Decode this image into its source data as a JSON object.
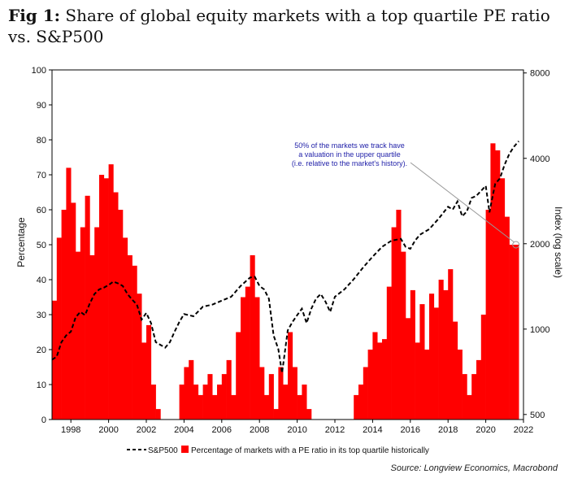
{
  "header": {
    "fig_label": "Fig 1:",
    "title_text": "Share of global equity markets with a top quartile PE ratio vs. S&P500"
  },
  "source": "Source: Longview Economics, Macrobond",
  "colors": {
    "bars": "#ff0000",
    "line": "#000000",
    "annotation": "#1f1fa8"
  },
  "chart_data": {
    "type": "bar",
    "combo": "bar + dashed line (secondary log axis)",
    "xlabel": "",
    "ylabel": "Percentage",
    "y2label": "Index (log scale)",
    "x_range": [
      1997,
      2022
    ],
    "x_ticks": [
      "1998",
      "2000",
      "2002",
      "2004",
      "2006",
      "2008",
      "2010",
      "2012",
      "2014",
      "2016",
      "2018",
      "2020",
      "2022"
    ],
    "y_ticks": [
      "0",
      "10",
      "20",
      "30",
      "40",
      "50",
      "60",
      "70",
      "80",
      "90",
      "100"
    ],
    "ylim": [
      0,
      100
    ],
    "y2_ticks": [
      "500",
      "1000",
      "2000",
      "4000",
      "8000"
    ],
    "y2lim": [
      480,
      8200
    ],
    "y2_log": true,
    "legend": {
      "position": "bottom-center",
      "entries": [
        "S&P500",
        "Percentage of markets with a PE ratio in its top quartile historically"
      ]
    },
    "grid": false,
    "annotation": {
      "lines": [
        "50% of the markets we track have",
        "a valuation in the upper quartile",
        "(i.e. relative to the market's history)."
      ],
      "x": 2021.6,
      "y": 50
    },
    "series": [
      {
        "name": "Percentage of markets with a PE ratio in its top quartile historically",
        "type": "bar",
        "x": [
          1997.0,
          1997.25,
          1997.5,
          1997.75,
          1998.0,
          1998.25,
          1998.5,
          1998.75,
          1999.0,
          1999.25,
          1999.5,
          1999.75,
          2000.0,
          2000.25,
          2000.5,
          2000.75,
          2001.0,
          2001.25,
          2001.5,
          2001.75,
          2002.0,
          2002.25,
          2002.5,
          2002.75,
          2003.0,
          2003.25,
          2003.5,
          2003.75,
          2004.0,
          2004.25,
          2004.5,
          2004.75,
          2005.0,
          2005.25,
          2005.5,
          2005.75,
          2006.0,
          2006.25,
          2006.5,
          2006.75,
          2007.0,
          2007.25,
          2007.5,
          2007.75,
          2008.0,
          2008.25,
          2008.5,
          2008.75,
          2009.0,
          2009.25,
          2009.5,
          2009.75,
          2010.0,
          2010.25,
          2010.5,
          2010.75,
          2011.0,
          2011.25,
          2011.5,
          2011.75,
          2012.0,
          2012.25,
          2012.5,
          2012.75,
          2013.0,
          2013.25,
          2013.5,
          2013.75,
          2014.0,
          2014.25,
          2014.5,
          2014.75,
          2015.0,
          2015.25,
          2015.5,
          2015.75,
          2016.0,
          2016.25,
          2016.5,
          2016.75,
          2017.0,
          2017.25,
          2017.5,
          2017.75,
          2018.0,
          2018.25,
          2018.5,
          2018.75,
          2019.0,
          2019.25,
          2019.5,
          2019.75,
          2020.0,
          2020.25,
          2020.5,
          2020.75,
          2021.0,
          2021.25,
          2021.5
        ],
        "values": [
          34,
          52,
          60,
          72,
          62,
          48,
          55,
          64,
          47,
          55,
          70,
          69,
          73,
          65,
          60,
          52,
          47,
          44,
          36,
          22,
          27,
          10,
          3,
          0,
          0,
          0,
          0,
          10,
          15,
          17,
          10,
          7,
          10,
          13,
          7,
          10,
          13,
          17,
          7,
          25,
          35,
          38,
          47,
          35,
          15,
          7,
          13,
          3,
          15,
          10,
          25,
          15,
          7,
          10,
          3,
          0,
          0,
          0,
          0,
          0,
          0,
          0,
          0,
          0,
          7,
          10,
          15,
          20,
          25,
          22,
          23,
          38,
          55,
          60,
          48,
          29,
          37,
          22,
          33,
          20,
          36,
          32,
          40,
          37,
          43,
          28,
          20,
          13,
          7,
          13,
          17,
          30,
          60,
          79,
          77,
          69,
          58,
          50,
          50
        ]
      },
      {
        "name": "S&P500",
        "type": "line",
        "style": "dashed",
        "x": [
          1997.0,
          1997.25,
          1997.5,
          1997.75,
          1998.0,
          1998.25,
          1998.5,
          1998.75,
          1999.0,
          1999.25,
          1999.5,
          1999.75,
          2000.0,
          2000.25,
          2000.5,
          2000.75,
          2001.0,
          2001.25,
          2001.5,
          2001.75,
          2002.0,
          2002.25,
          2002.5,
          2002.75,
          2003.0,
          2003.25,
          2003.5,
          2003.75,
          2004.0,
          2004.5,
          2005.0,
          2005.5,
          2006.0,
          2006.5,
          2007.0,
          2007.5,
          2007.75,
          2008.0,
          2008.25,
          2008.5,
          2008.75,
          2009.0,
          2009.2,
          2009.5,
          2009.75,
          2010.0,
          2010.25,
          2010.5,
          2010.75,
          2011.0,
          2011.25,
          2011.5,
          2011.75,
          2012.0,
          2012.5,
          2013.0,
          2013.5,
          2014.0,
          2014.5,
          2015.0,
          2015.5,
          2015.75,
          2016.0,
          2016.25,
          2016.5,
          2017.0,
          2017.5,
          2018.0,
          2018.25,
          2018.5,
          2018.75,
          2019.0,
          2019.25,
          2019.5,
          2020.0,
          2020.2,
          2020.25,
          2020.5,
          2020.75,
          2021.0,
          2021.25,
          2021.5,
          2021.75
        ],
        "values": [
          780,
          800,
          900,
          950,
          980,
          1100,
          1150,
          1120,
          1230,
          1330,
          1380,
          1400,
          1430,
          1470,
          1450,
          1420,
          1330,
          1270,
          1220,
          1080,
          1140,
          1050,
          900,
          880,
          860,
          900,
          980,
          1060,
          1130,
          1110,
          1200,
          1220,
          1260,
          1300,
          1420,
          1520,
          1530,
          1420,
          1380,
          1280,
          950,
          850,
          700,
          990,
          1060,
          1120,
          1180,
          1050,
          1180,
          1280,
          1330,
          1250,
          1150,
          1300,
          1380,
          1500,
          1650,
          1800,
          1950,
          2050,
          2080,
          1950,
          1920,
          2050,
          2150,
          2250,
          2450,
          2700,
          2640,
          2820,
          2500,
          2600,
          2900,
          2950,
          3200,
          2580,
          2700,
          3250,
          3400,
          3800,
          4150,
          4400,
          4600
        ]
      }
    ]
  }
}
